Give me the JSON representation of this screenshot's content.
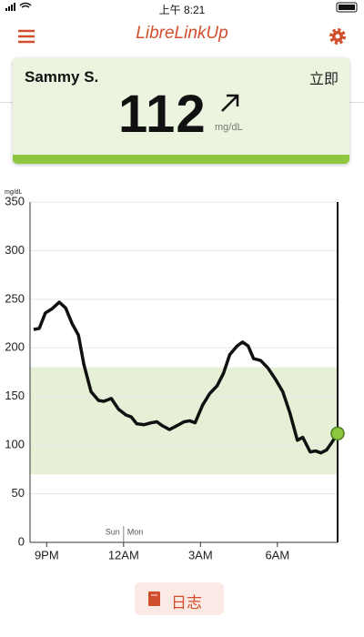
{
  "status_bar": {
    "time": "上午 8:21"
  },
  "nav": {
    "title": "LibreLinkUp"
  },
  "card": {
    "name": "Sammy S.",
    "time_label": "立即",
    "value": 112,
    "unit": "mg/dL"
  },
  "chart_data": {
    "type": "line",
    "y_label": "mg/dL",
    "x": [
      20.49,
      20.71,
      20.95,
      21.2,
      21.49,
      21.74,
      21.99,
      22.24,
      22.45,
      22.73,
      23.02,
      23.23,
      23.52,
      23.8,
      24.09,
      24.3,
      24.51,
      24.8,
      25.08,
      25.3,
      25.51,
      25.79,
      26.08,
      26.36,
      26.58,
      26.79,
      27.08,
      27.36,
      27.65,
      27.9,
      28.14,
      28.43,
      28.64,
      28.86,
      29.07,
      29.35,
      29.64,
      29.92,
      30.21,
      30.49,
      30.78,
      30.99,
      31.28,
      31.49,
      31.7,
      31.92,
      32.13,
      32.35
    ],
    "series": [
      {
        "color": "#111111",
        "values": [
          219,
          220,
          236,
          240,
          247,
          241,
          225,
          213,
          183,
          155,
          146,
          145,
          148,
          137,
          131,
          129,
          122,
          121,
          123,
          124,
          120,
          116,
          120,
          124,
          125,
          123,
          141,
          153,
          161,
          174,
          193,
          202,
          206,
          202,
          189,
          187,
          179,
          168,
          155,
          133,
          105,
          108,
          93,
          94,
          92,
          95,
          103,
          112
        ]
      }
    ],
    "xlim": [
      20.35,
      32.35
    ],
    "xticks": [
      {
        "value": 21,
        "label": "9PM"
      },
      {
        "value": 24,
        "label": "12AM"
      },
      {
        "value": 27,
        "label": "3AM"
      },
      {
        "value": 30,
        "label": "6AM"
      }
    ],
    "ylim": [
      0,
      350
    ],
    "yticks": [
      0,
      50,
      100,
      150,
      200,
      250,
      300,
      350
    ],
    "grid": true,
    "target_range": [
      70,
      180
    ],
    "target_color": "#e6f0d6",
    "marker_color": "#8dc63f",
    "day_change": {
      "x": 24,
      "labels": [
        "Sun",
        "Mon"
      ]
    }
  },
  "button": {
    "label": "日志"
  }
}
